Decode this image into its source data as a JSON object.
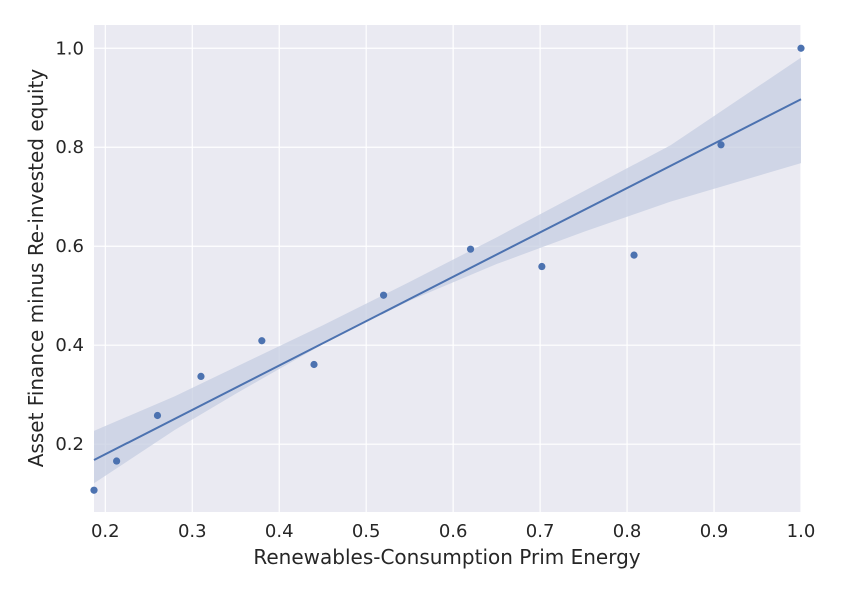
{
  "chart_data": {
    "type": "scatter",
    "title": "",
    "xlabel": "Renewables-Consumption Prim Energy",
    "ylabel": "Asset Finance minus Re-invested equity",
    "xlim": [
      0.187,
      1.0
    ],
    "ylim": [
      0.063,
      1.047
    ],
    "xticks": [
      "0.2",
      "0.3",
      "0.4",
      "0.5",
      "0.6",
      "0.7",
      "0.8",
      "0.9",
      "1.0"
    ],
    "yticks": [
      "0.2",
      "0.4",
      "0.6",
      "0.8",
      "1.0"
    ],
    "grid": true,
    "background_color": "#eaeaf2",
    "point_color": "#4c72b0",
    "line_color": "#4c72b0",
    "band_color": "#c5cde2",
    "points": [
      {
        "x": 0.187,
        "y": 0.107
      },
      {
        "x": 0.213,
        "y": 0.166
      },
      {
        "x": 0.26,
        "y": 0.258
      },
      {
        "x": 0.31,
        "y": 0.337
      },
      {
        "x": 0.38,
        "y": 0.409
      },
      {
        "x": 0.44,
        "y": 0.361
      },
      {
        "x": 0.52,
        "y": 0.501
      },
      {
        "x": 0.62,
        "y": 0.594
      },
      {
        "x": 0.702,
        "y": 0.559
      },
      {
        "x": 0.808,
        "y": 0.582
      },
      {
        "x": 0.908,
        "y": 0.805
      },
      {
        "x": 1.0,
        "y": 1.0
      }
    ],
    "regression": {
      "x": [
        0.187,
        1.0
      ],
      "y": [
        0.168,
        0.897
      ]
    },
    "confidence_band": {
      "x": [
        0.187,
        0.28,
        0.35,
        0.45,
        0.55,
        0.65,
        0.75,
        0.85,
        1.0
      ],
      "lower": [
        0.121,
        0.229,
        0.302,
        0.402,
        0.49,
        0.564,
        0.629,
        0.69,
        0.768
      ],
      "upper": [
        0.227,
        0.297,
        0.356,
        0.44,
        0.528,
        0.618,
        0.711,
        0.804,
        0.981
      ]
    }
  }
}
